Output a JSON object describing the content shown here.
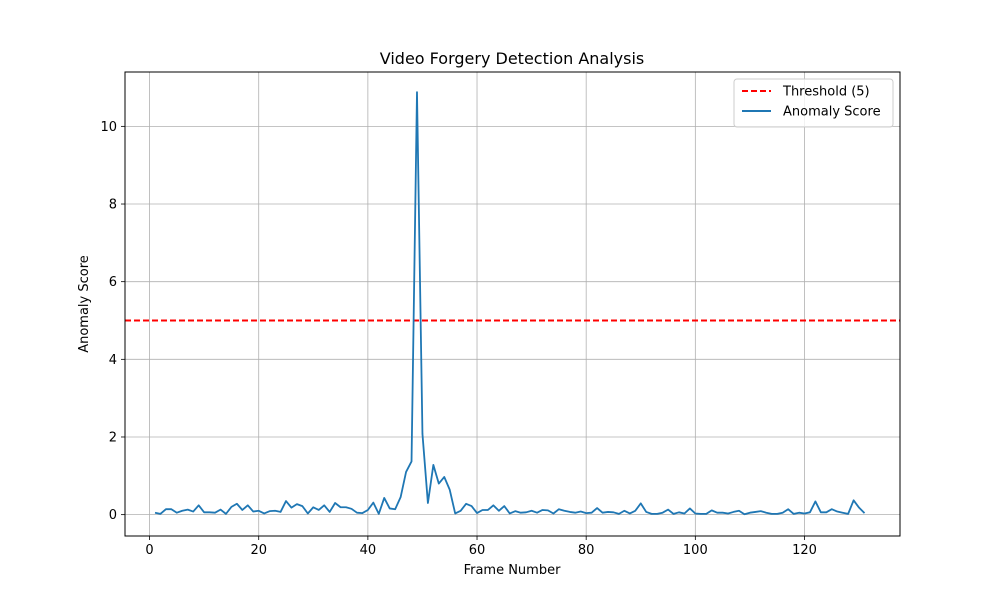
{
  "chart_data": {
    "type": "line",
    "title": "Video Forgery Detection Analysis",
    "xlabel": "Frame Number",
    "ylabel": "Anomaly Score",
    "xlim": [
      -4.5,
      137.5
    ],
    "ylim": [
      -0.55,
      11.4
    ],
    "xticks": [
      0,
      20,
      40,
      60,
      80,
      100,
      120
    ],
    "yticks": [
      0,
      2,
      4,
      6,
      8,
      10
    ],
    "grid": true,
    "legend_position": "top-right",
    "threshold": {
      "name": "Threshold (5)",
      "value": 5,
      "color": "#ff0000",
      "style": "dashed"
    },
    "series": [
      {
        "name": "Anomaly Score",
        "color": "#1f77b4",
        "x": [
          1,
          2,
          3,
          4,
          5,
          6,
          7,
          8,
          9,
          10,
          11,
          12,
          13,
          14,
          15,
          16,
          17,
          18,
          19,
          20,
          21,
          22,
          23,
          24,
          25,
          26,
          27,
          28,
          29,
          30,
          31,
          32,
          33,
          34,
          35,
          36,
          37,
          38,
          39,
          40,
          41,
          42,
          43,
          44,
          45,
          46,
          47,
          48,
          49,
          50,
          51,
          52,
          53,
          54,
          55,
          56,
          57,
          58,
          59,
          60,
          61,
          62,
          63,
          64,
          65,
          66,
          67,
          68,
          69,
          70,
          71,
          72,
          73,
          74,
          75,
          76,
          77,
          78,
          79,
          80,
          81,
          82,
          83,
          84,
          85,
          86,
          87,
          88,
          89,
          90,
          91,
          92,
          93,
          94,
          95,
          96,
          97,
          98,
          99,
          100,
          101,
          102,
          103,
          104,
          105,
          106,
          107,
          108,
          109,
          110,
          111,
          112,
          113,
          114,
          115,
          116,
          117,
          118,
          119,
          120,
          121,
          122,
          123,
          124,
          125,
          126,
          127,
          128,
          129,
          130,
          131
        ],
        "values": [
          0.05,
          0.02,
          0.14,
          0.14,
          0.05,
          0.1,
          0.13,
          0.08,
          0.24,
          0.06,
          0.06,
          0.05,
          0.13,
          0.02,
          0.2,
          0.28,
          0.12,
          0.24,
          0.08,
          0.1,
          0.03,
          0.09,
          0.1,
          0.07,
          0.35,
          0.18,
          0.27,
          0.22,
          0.03,
          0.19,
          0.12,
          0.24,
          0.07,
          0.3,
          0.19,
          0.19,
          0.15,
          0.05,
          0.04,
          0.12,
          0.31,
          0.02,
          0.43,
          0.16,
          0.14,
          0.45,
          1.1,
          1.37,
          10.88,
          2.08,
          0.3,
          1.28,
          0.8,
          0.97,
          0.64,
          0.03,
          0.1,
          0.28,
          0.22,
          0.04,
          0.12,
          0.12,
          0.24,
          0.1,
          0.22,
          0.03,
          0.09,
          0.05,
          0.06,
          0.1,
          0.05,
          0.12,
          0.11,
          0.03,
          0.14,
          0.1,
          0.07,
          0.05,
          0.08,
          0.04,
          0.05,
          0.17,
          0.05,
          0.07,
          0.06,
          0.02,
          0.1,
          0.03,
          0.1,
          0.29,
          0.07,
          0.02,
          0.02,
          0.05,
          0.13,
          0.02,
          0.06,
          0.03,
          0.16,
          0.03,
          0.02,
          0.02,
          0.11,
          0.05,
          0.05,
          0.03,
          0.07,
          0.1,
          0.01,
          0.05,
          0.07,
          0.09,
          0.05,
          0.02,
          0.02,
          0.05,
          0.14,
          0.02,
          0.05,
          0.03,
          0.06,
          0.34,
          0.06,
          0.06,
          0.14,
          0.08,
          0.05,
          0.02,
          0.37,
          0.18,
          0.04
        ]
      }
    ]
  }
}
